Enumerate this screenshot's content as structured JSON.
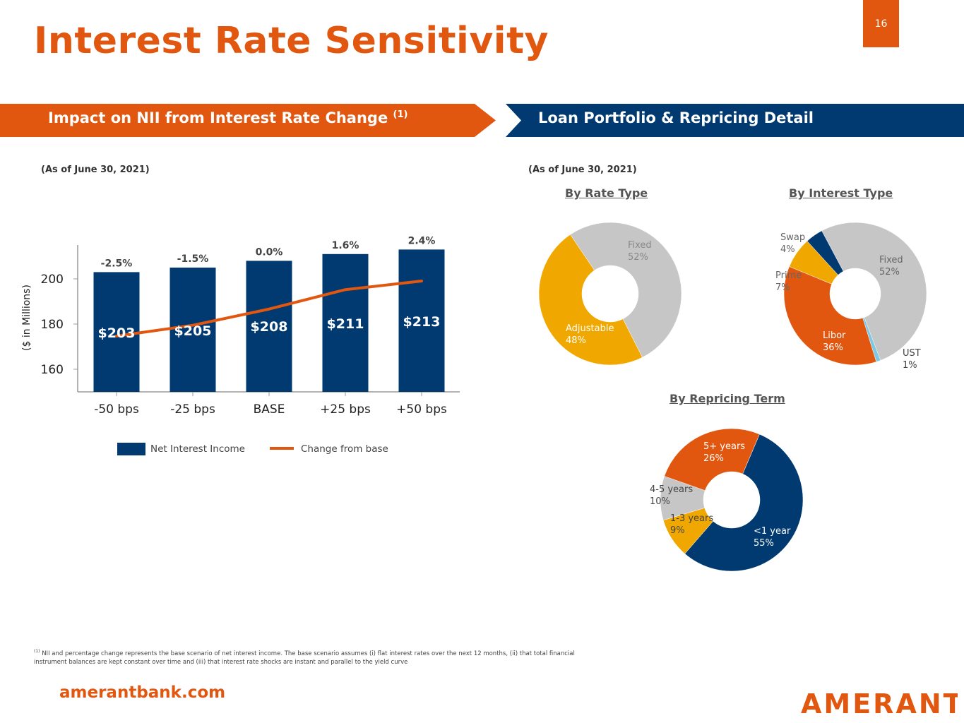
{
  "page": {
    "title": "Interest Rate Sensitivity",
    "page_number": "16",
    "website": "amerantbank.com",
    "logo_text": "AMERANT",
    "footnote_marker": "(1)",
    "footnote": "NII and percentage change represents the base scenario of net interest income. The base scenario assumes (i) flat interest rates over the next 12 months, (ii) that total financial instrument balances are kept constant over time and (iii) that interest rate shocks are instant and parallel to the yield curve"
  },
  "left_panel": {
    "header": "Impact on NII from Interest Rate Change",
    "header_sup": "(1)",
    "as_of": "(As of June 30, 2021)"
  },
  "right_panel": {
    "header": "Loan Portfolio & Repricing Detail",
    "as_of": "(As of June 30, 2021)"
  },
  "colors": {
    "orange": "#e2570f",
    "navy": "#003a70",
    "gray": "#c6c6c6",
    "gold": "#f0a800",
    "light_blue": "#7ec8e3"
  },
  "chart_data": [
    {
      "type": "bar",
      "categories": [
        "-50 bps",
        "-25 bps",
        "BASE",
        "+25 bps",
        "+50 bps"
      ],
      "ylabel": "($ in Millions)",
      "ylim": [
        150,
        215
      ],
      "yticks": [
        160,
        180,
        200
      ],
      "series": [
        {
          "name": "Net Interest Income",
          "values": [
            203,
            205,
            208,
            211,
            213
          ],
          "labels": [
            "$203",
            "$205",
            "$208",
            "$211",
            "$213"
          ]
        },
        {
          "name": "Change from base",
          "type": "line",
          "values": [
            -2.5,
            -1.5,
            0.0,
            1.6,
            2.4
          ],
          "labels": [
            "-2.5%",
            "-1.5%",
            "0.0%",
            "1.6%",
            "2.4%"
          ]
        }
      ],
      "legend": "bottom"
    },
    {
      "type": "pie",
      "title": "By Rate Type",
      "slices": [
        {
          "label": "Fixed",
          "pct_label": "52%",
          "value": 52,
          "color": "#c6c6c6"
        },
        {
          "label": "Adjustable",
          "pct_label": "48%",
          "value": 48,
          "color": "#f0a800"
        }
      ]
    },
    {
      "type": "pie",
      "title": "By Interest Type",
      "slices": [
        {
          "label": "Fixed",
          "pct_label": "52%",
          "value": 52,
          "color": "#c6c6c6"
        },
        {
          "label": "UST",
          "pct_label": "1%",
          "value": 1,
          "color": "#7ec8e3"
        },
        {
          "label": "Libor",
          "pct_label": "36%",
          "value": 36,
          "color": "#e2570f"
        },
        {
          "label": "Prime",
          "pct_label": "7%",
          "value": 7,
          "color": "#f0a800"
        },
        {
          "label": "Swap",
          "pct_label": "4%",
          "value": 4,
          "color": "#003a70"
        }
      ]
    },
    {
      "type": "pie",
      "title": "By Repricing Term",
      "slices": [
        {
          "label": "<1 year",
          "pct_label": "55%",
          "value": 55,
          "color": "#003a70"
        },
        {
          "label": "1-3 years",
          "pct_label": "9%",
          "value": 9,
          "color": "#f0a800"
        },
        {
          "label": "4-5 years",
          "pct_label": "10%",
          "value": 10,
          "color": "#c6c6c6"
        },
        {
          "label": "5+ years",
          "pct_label": "26%",
          "value": 26,
          "color": "#e2570f"
        }
      ]
    }
  ]
}
